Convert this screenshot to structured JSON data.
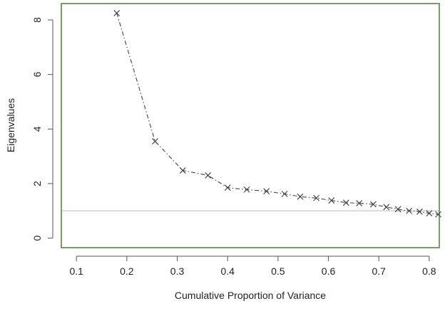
{
  "chart_data": {
    "type": "scatter",
    "mode": "lines+markers",
    "marker": "x",
    "line_style": "dash-dot",
    "title": "",
    "xlabel": "Cumulative Proportion of Variance",
    "ylabel": "Eigenvalues",
    "xlim": [
      0.07,
      0.82
    ],
    "ylim": [
      -0.35,
      8.6
    ],
    "x_ticks": [
      0.1,
      0.2,
      0.3,
      0.4,
      0.5,
      0.6,
      0.7,
      0.8
    ],
    "x_tick_labels": [
      "0.1",
      "0.2",
      "0.3",
      "0.4",
      "0.5",
      "0.6",
      "0.7",
      "0.8"
    ],
    "y_ticks": [
      0,
      2,
      4,
      6,
      8
    ],
    "y_tick_labels": [
      "0",
      "2",
      "4",
      "6",
      "8"
    ],
    "grid": false,
    "reference_line": {
      "y": 1.0,
      "color": "#c8c8c8"
    },
    "series": [
      {
        "x": [
          0.18,
          0.256,
          0.311,
          0.361,
          0.4,
          0.438,
          0.477,
          0.513,
          0.544,
          0.576,
          0.606,
          0.635,
          0.661,
          0.689,
          0.715,
          0.738,
          0.76,
          0.781,
          0.8,
          0.818
        ],
        "y": [
          8.25,
          3.55,
          2.48,
          2.3,
          1.85,
          1.78,
          1.72,
          1.62,
          1.52,
          1.47,
          1.38,
          1.3,
          1.28,
          1.24,
          1.14,
          1.06,
          1.0,
          0.97,
          0.91,
          0.87
        ]
      }
    ],
    "colors": {
      "frame": "#4f7a3a",
      "axis": "#555555",
      "series": "#444444",
      "text": "#222222"
    }
  }
}
